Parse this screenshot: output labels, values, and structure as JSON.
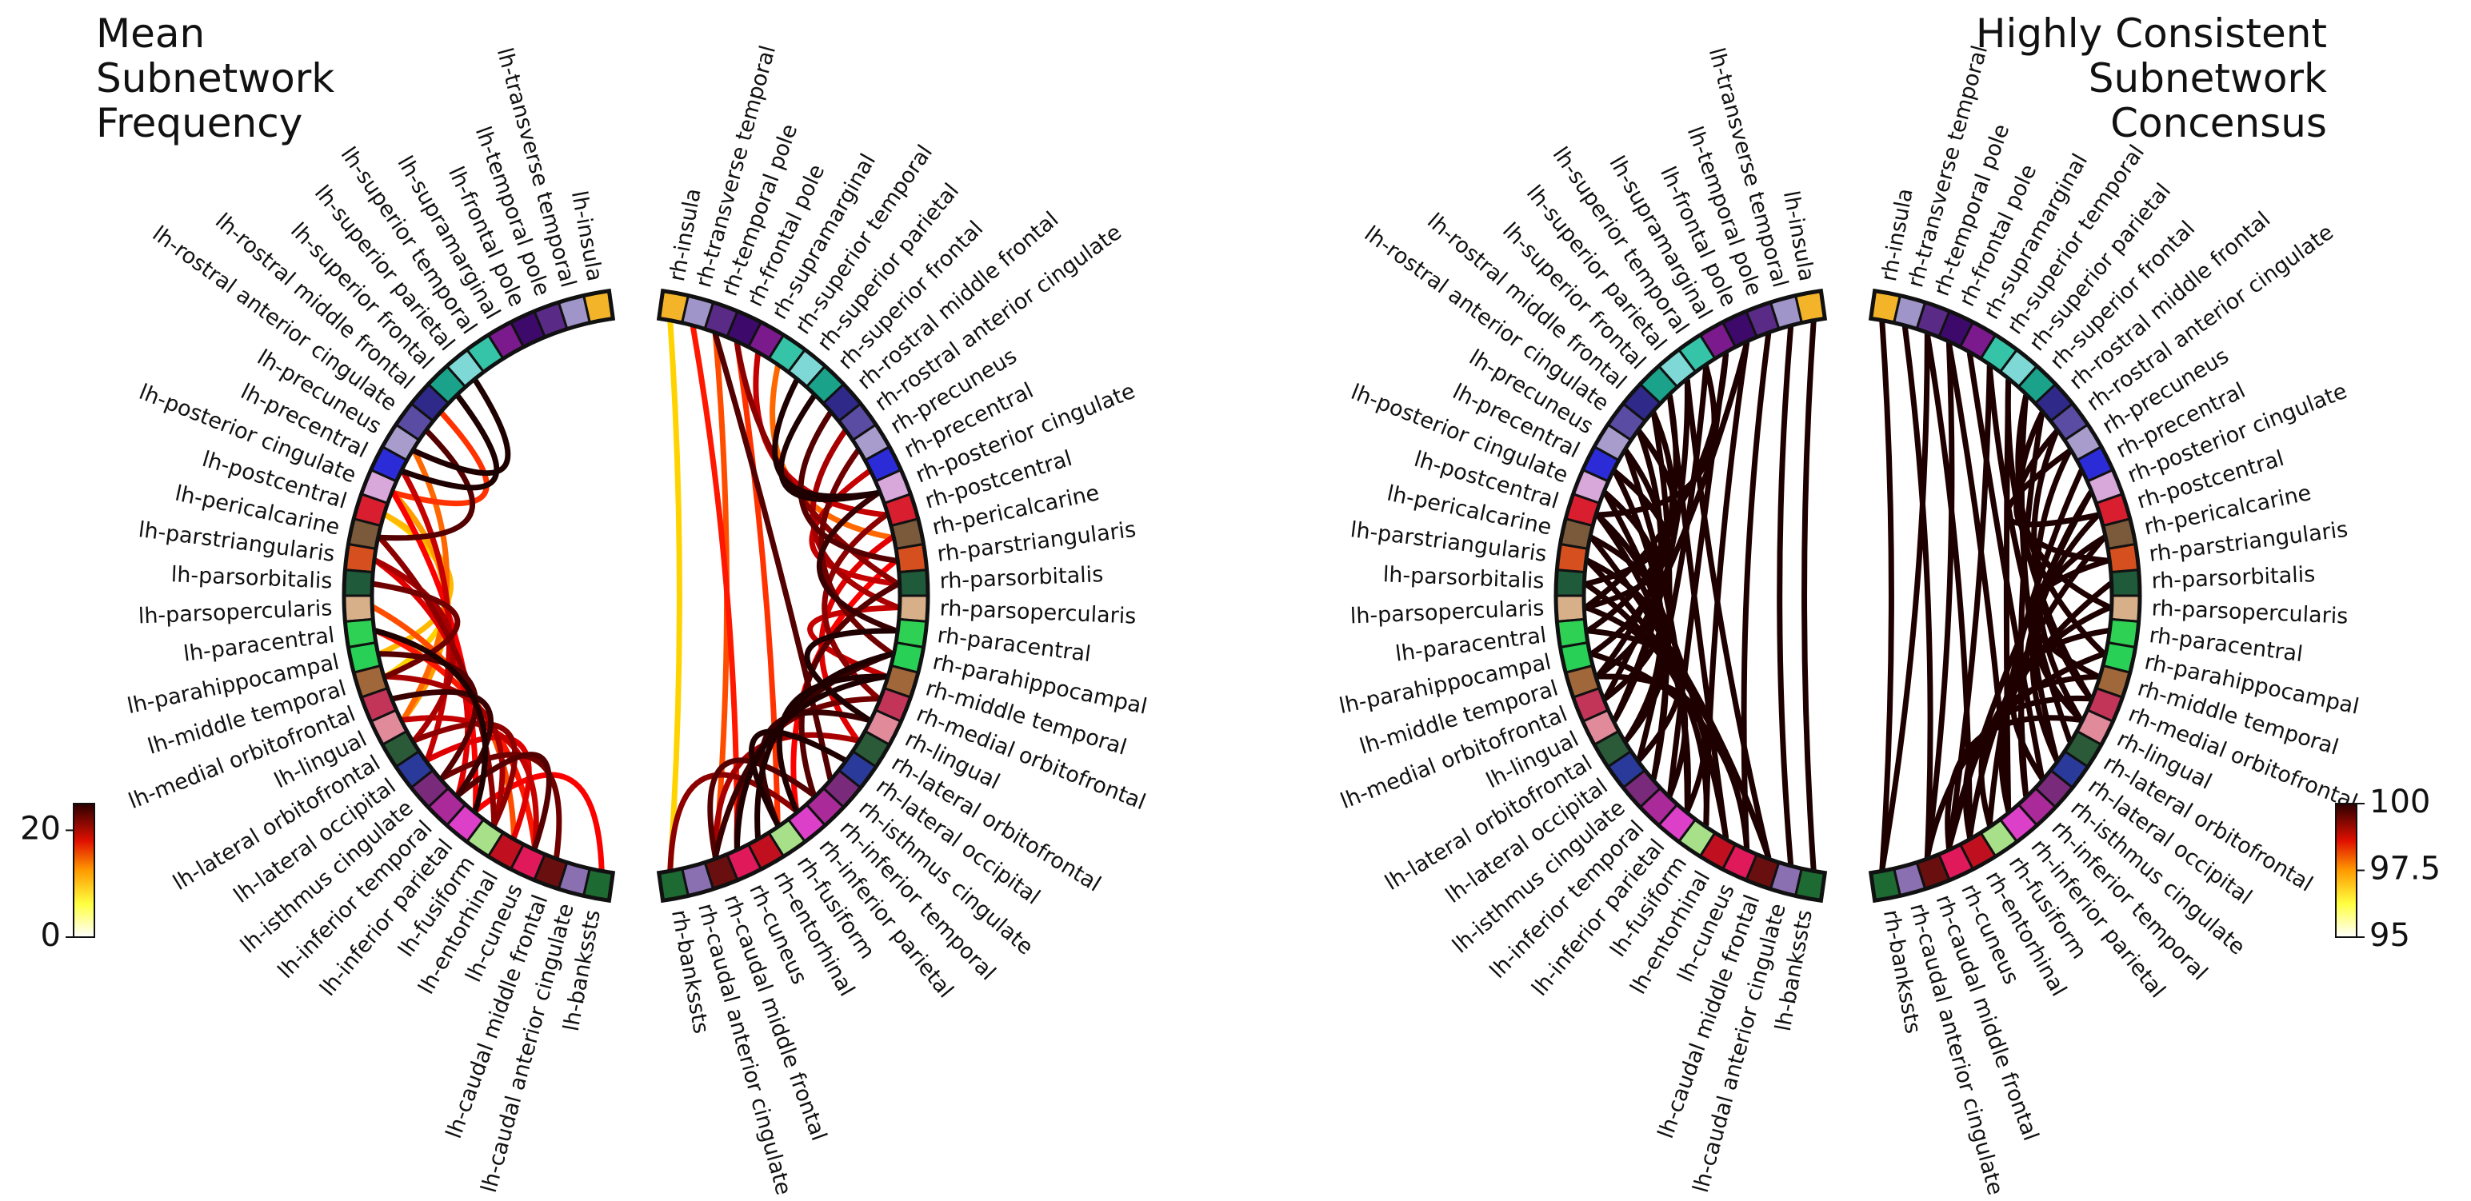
{
  "titles": {
    "left": "Mean\nSubnetwork\nFrequency",
    "right": "Highly Consistent\nSubnetwork\nConcensus"
  },
  "chart_data": [
    {
      "type": "chord",
      "panel": "left",
      "title": "Mean Subnetwork Frequency",
      "colormap": "hot_r",
      "colorbar": {
        "min": 0,
        "max": 25,
        "ticks": [
          0,
          20
        ]
      },
      "lh_labels": [
        "lh-insula",
        "lh-transverse temporal",
        "lh-temporal pole",
        "lh-frontal pole",
        "lh-supramarginal",
        "lh-superior temporal",
        "lh-superior parietal",
        "lh-superior frontal",
        "lh-rostral middle frontal",
        "lh-rostral anterior cingulate",
        "lh-precuneus",
        "lh-precentral",
        "lh-posterior cingulate",
        "lh-postcentral",
        "lh-pericalcarine",
        "lh-parstriangularis",
        "lh-parsorbitalis",
        "lh-parsopercularis",
        "lh-paracentral",
        "lh-parahippocampal",
        "lh-middle temporal",
        "lh-medial orbitofrontal",
        "lh-lingual",
        "lh-lateral orbitofrontal",
        "lh-lateral occipital",
        "lh-isthmus cingulate",
        "lh-inferior temporal",
        "lh-inferior parietal",
        "lh-fusiform",
        "lh-entorhinal",
        "lh-cuneus",
        "lh-caudal middle frontal",
        "lh-caudal anterior cingulate",
        "lh-bankssts"
      ],
      "rh_labels": [
        "rh-insula",
        "rh-transverse temporal",
        "rh-temporal pole",
        "rh-frontal pole",
        "rh-supramarginal",
        "rh-superior temporal",
        "rh-superior parietal",
        "rh-superior frontal",
        "rh-rostral middle frontal",
        "rh-rostral anterior cingulate",
        "rh-precuneus",
        "rh-precentral",
        "rh-posterior cingulate",
        "rh-postcentral",
        "rh-pericalcarine",
        "rh-parstriangularis",
        "rh-parsorbitalis",
        "rh-parsopercularis",
        "rh-paracentral",
        "rh-parahippocampal",
        "rh-middle temporal",
        "rh-medial orbitofrontal",
        "rh-lingual",
        "rh-lateral orbitofrontal",
        "rh-lateral occipital",
        "rh-isthmus cingulate",
        "rh-inferior temporal",
        "rh-inferior parietal",
        "rh-fusiform",
        "rh-entorhinal",
        "rh-cuneus",
        "rh-caudal middle frontal",
        "rh-caudal anterior cingulate",
        "rh-bankssts"
      ],
      "lh_links": [
        [
          7,
          11,
          24
        ],
        [
          8,
          12,
          14
        ],
        [
          6,
          10,
          25
        ],
        [
          9,
          14,
          22
        ],
        [
          10,
          22,
          12
        ],
        [
          11,
          24,
          18
        ],
        [
          12,
          27,
          16
        ],
        [
          13,
          19,
          9
        ],
        [
          14,
          28,
          20
        ],
        [
          15,
          26,
          17
        ],
        [
          16,
          20,
          21
        ],
        [
          17,
          29,
          13
        ],
        [
          18,
          30,
          15
        ],
        [
          19,
          25,
          22
        ],
        [
          20,
          28,
          19
        ],
        [
          21,
          26,
          23
        ],
        [
          22,
          30,
          18
        ],
        [
          23,
          28,
          20
        ],
        [
          24,
          29,
          17
        ],
        [
          25,
          31,
          21
        ],
        [
          26,
          30,
          22
        ],
        [
          27,
          33,
          16
        ],
        [
          13,
          20,
          8
        ],
        [
          15,
          23,
          19
        ],
        [
          12,
          22,
          10
        ],
        [
          18,
          27,
          24
        ]
      ],
      "rh_links": [
        [
          0,
          33,
          8
        ],
        [
          1,
          30,
          15
        ],
        [
          2,
          25,
          22
        ],
        [
          3,
          16,
          20
        ],
        [
          4,
          13,
          18
        ],
        [
          5,
          14,
          12
        ],
        [
          6,
          12,
          24
        ],
        [
          7,
          12,
          25
        ],
        [
          8,
          15,
          22
        ],
        [
          9,
          17,
          19
        ],
        [
          10,
          19,
          21
        ],
        [
          11,
          16,
          18
        ],
        [
          12,
          18,
          23
        ],
        [
          13,
          21,
          20
        ],
        [
          14,
          23,
          17
        ],
        [
          15,
          27,
          16
        ],
        [
          16,
          26,
          22
        ],
        [
          17,
          20,
          18
        ],
        [
          18,
          22,
          24
        ],
        [
          19,
          29,
          25
        ],
        [
          20,
          30,
          24
        ],
        [
          21,
          30,
          21
        ],
        [
          22,
          28,
          23
        ],
        [
          23,
          31,
          19
        ],
        [
          24,
          28,
          25
        ],
        [
          26,
          31,
          22
        ],
        [
          27,
          33,
          20
        ],
        [
          20,
          27,
          24
        ],
        [
          19,
          31,
          23
        ],
        [
          3,
          28,
          14
        ],
        [
          2,
          31,
          13
        ]
      ]
    },
    {
      "type": "chord",
      "panel": "right",
      "title": "Highly Consistent Subnetwork Concensus",
      "colormap": "hot_r",
      "colorbar": {
        "min": 95.0,
        "max": 100.0,
        "ticks": [
          95.0,
          97.5,
          100.0
        ]
      },
      "lh_labels": [
        "lh-insula",
        "lh-transverse temporal",
        "lh-temporal pole",
        "lh-frontal pole",
        "lh-supramarginal",
        "lh-superior temporal",
        "lh-superior parietal",
        "lh-superior frontal",
        "lh-rostral middle frontal",
        "lh-rostral anterior cingulate",
        "lh-precuneus",
        "lh-precentral",
        "lh-posterior cingulate",
        "lh-postcentral",
        "lh-pericalcarine",
        "lh-parstriangularis",
        "lh-parsorbitalis",
        "lh-parsopercularis",
        "lh-paracentral",
        "lh-parahippocampal",
        "lh-middle temporal",
        "lh-medial orbitofrontal",
        "lh-lingual",
        "lh-lateral orbitofrontal",
        "lh-lateral occipital",
        "lh-isthmus cingulate",
        "lh-inferior temporal",
        "lh-inferior parietal",
        "lh-fusiform",
        "lh-entorhinal",
        "lh-cuneus",
        "lh-caudal middle frontal",
        "lh-caudal anterior cingulate",
        "lh-bankssts"
      ],
      "rh_labels": [
        "rh-insula",
        "rh-transverse temporal",
        "rh-temporal pole",
        "rh-frontal pole",
        "rh-supramarginal",
        "rh-superior temporal",
        "rh-superior parietal",
        "rh-superior frontal",
        "rh-rostral middle frontal",
        "rh-rostral anterior cingulate",
        "rh-precuneus",
        "rh-precentral",
        "rh-posterior cingulate",
        "rh-postcentral",
        "rh-pericalcarine",
        "rh-parstriangularis",
        "rh-parsorbitalis",
        "rh-parsopercularis",
        "rh-paracentral",
        "rh-parahippocampal",
        "rh-middle temporal",
        "rh-medial orbitofrontal",
        "rh-lingual",
        "rh-lateral orbitofrontal",
        "rh-lateral occipital",
        "rh-isthmus cingulate",
        "rh-inferior temporal",
        "rh-inferior parietal",
        "rh-fusiform",
        "rh-entorhinal",
        "rh-cuneus",
        "rh-caudal middle frontal",
        "rh-caudal anterior cingulate",
        "rh-bankssts"
      ],
      "lh_links": [
        [
          2,
          30,
          100
        ],
        [
          3,
          28,
          100
        ],
        [
          4,
          26,
          100
        ],
        [
          5,
          24,
          100
        ],
        [
          6,
          22,
          100
        ],
        [
          7,
          20,
          100
        ],
        [
          8,
          18,
          100
        ],
        [
          9,
          16,
          100
        ],
        [
          10,
          27,
          100
        ],
        [
          11,
          25,
          100
        ],
        [
          12,
          29,
          100
        ],
        [
          13,
          23,
          100
        ],
        [
          14,
          21,
          100
        ],
        [
          15,
          31,
          100
        ],
        [
          16,
          28,
          100
        ],
        [
          17,
          26,
          100
        ],
        [
          18,
          24,
          100
        ],
        [
          19,
          30,
          100
        ],
        [
          20,
          27,
          100
        ],
        [
          6,
          31,
          100
        ],
        [
          7,
          29,
          100
        ],
        [
          8,
          25,
          100
        ],
        [
          9,
          22,
          100
        ],
        [
          10,
          19,
          100
        ],
        [
          11,
          17,
          100
        ],
        [
          12,
          20,
          100
        ],
        [
          13,
          27,
          100
        ],
        [
          14,
          31,
          100
        ],
        [
          15,
          23,
          100
        ],
        [
          4,
          17,
          100
        ],
        [
          5,
          13,
          100
        ],
        [
          3,
          21,
          100
        ],
        [
          0,
          33,
          100
        ],
        [
          1,
          32,
          100
        ]
      ],
      "rh_links": [
        [
          0,
          33,
          100
        ],
        [
          1,
          31,
          100
        ],
        [
          2,
          29,
          100
        ],
        [
          3,
          27,
          100
        ],
        [
          4,
          25,
          100
        ],
        [
          5,
          23,
          100
        ],
        [
          6,
          21,
          100
        ],
        [
          7,
          19,
          100
        ],
        [
          8,
          17,
          100
        ],
        [
          9,
          15,
          100
        ],
        [
          10,
          13,
          100
        ],
        [
          11,
          28,
          100
        ],
        [
          12,
          26,
          100
        ],
        [
          13,
          24,
          100
        ],
        [
          14,
          22,
          100
        ],
        [
          15,
          20,
          100
        ],
        [
          16,
          30,
          100
        ],
        [
          17,
          27,
          100
        ],
        [
          18,
          25,
          100
        ],
        [
          19,
          31,
          100
        ],
        [
          20,
          28,
          100
        ],
        [
          21,
          29,
          100
        ],
        [
          22,
          30,
          100
        ],
        [
          5,
          30,
          100
        ],
        [
          6,
          27,
          100
        ],
        [
          7,
          24,
          100
        ],
        [
          8,
          26,
          100
        ],
        [
          9,
          21,
          100
        ],
        [
          3,
          31,
          100
        ],
        [
          2,
          33,
          100
        ],
        [
          10,
          22,
          100
        ],
        [
          12,
          30,
          100
        ],
        [
          14,
          29,
          100
        ]
      ]
    }
  ],
  "region_colors": [
    "#f4b42a",
    "#9f95c8",
    "#5a2a87",
    "#3d0a6b",
    "#7a1a8c",
    "#35c4a8",
    "#7ed9d6",
    "#1aa38a",
    "#2f2a8a",
    "#5a4ca3",
    "#a89ccc",
    "#2c2bd8",
    "#d7a8d9",
    "#d91f2f",
    "#7a5a3a",
    "#d6501f",
    "#1f5a3a",
    "#d7b08a",
    "#2fd155",
    "#28d155",
    "#a0683a",
    "#c23558",
    "#e08a9a",
    "#2a5a38",
    "#2a3a9a",
    "#7a2a7a",
    "#aa2a9a",
    "#dc40c8",
    "#a8e08a",
    "#c0101f",
    "#e01a5a",
    "#6a0f0f",
    "#8a70b0",
    "#1e6a33"
  ]
}
